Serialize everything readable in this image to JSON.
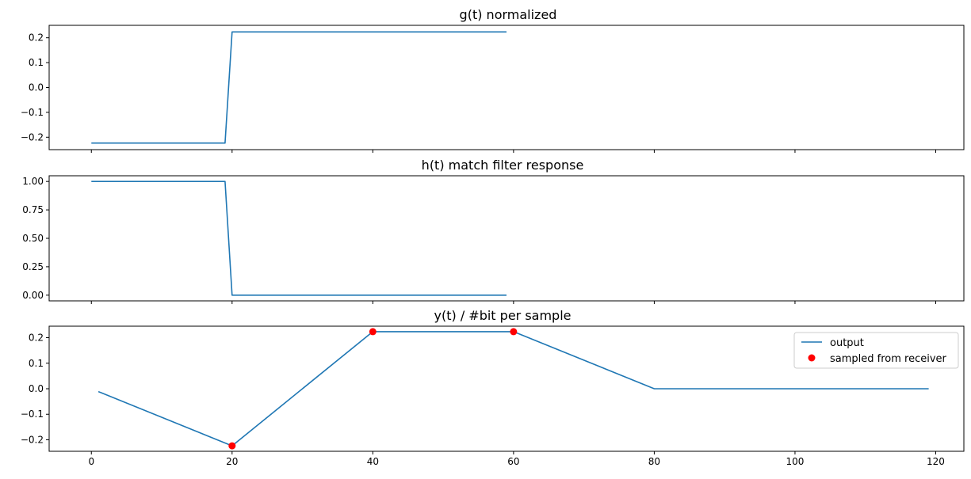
{
  "colors": {
    "line": "#1f77b4",
    "marker": "#ff0000"
  },
  "chart_data": [
    {
      "type": "line",
      "title": "g(t) normalized",
      "xlim": [
        -6,
        124
      ],
      "ylim": [
        -0.25,
        0.25
      ],
      "x_ticks": [
        0,
        20,
        40,
        60,
        80,
        100,
        120
      ],
      "x_ticklabels": [
        "",
        "",
        "",
        "",
        "",
        "",
        ""
      ],
      "y_ticks": [
        -0.2,
        -0.1,
        0.0,
        0.1,
        0.2
      ],
      "y_ticklabels": [
        "−0.2",
        "−0.1",
        "0.0",
        "0.1",
        "0.2"
      ],
      "series": [
        {
          "style": "line",
          "x": [
            0,
            19,
            20,
            59
          ],
          "y": [
            -0.2236,
            -0.2236,
            0.2236,
            0.2236
          ]
        }
      ]
    },
    {
      "type": "line",
      "title": "h(t) match filter response",
      "xlim": [
        -6,
        124
      ],
      "ylim": [
        -0.05,
        1.05
      ],
      "x_ticks": [
        0,
        20,
        40,
        60,
        80,
        100,
        120
      ],
      "x_ticklabels": [
        "",
        "",
        "",
        "",
        "",
        "",
        ""
      ],
      "y_ticks": [
        0.0,
        0.25,
        0.5,
        0.75,
        1.0
      ],
      "y_ticklabels": [
        "0.00",
        "0.25",
        "0.50",
        "0.75",
        "1.00"
      ],
      "series": [
        {
          "style": "line",
          "x": [
            0,
            19,
            20,
            59
          ],
          "y": [
            1.0,
            1.0,
            0.0,
            0.0
          ]
        }
      ]
    },
    {
      "type": "line",
      "title": "y(t) / #bit per sample",
      "xlim": [
        -6,
        124
      ],
      "ylim": [
        -0.245,
        0.245
      ],
      "x_ticks": [
        0,
        20,
        40,
        60,
        80,
        100,
        120
      ],
      "x_ticklabels": [
        "0",
        "20",
        "40",
        "60",
        "80",
        "100",
        "120"
      ],
      "y_ticks": [
        -0.2,
        -0.1,
        0.0,
        0.1,
        0.2
      ],
      "y_ticklabels": [
        "−0.2",
        "−0.1",
        "0.0",
        "0.1",
        "0.2"
      ],
      "legend": "top-right",
      "series": [
        {
          "name": "output",
          "style": "line",
          "x": [
            1,
            20,
            40,
            60,
            80,
            119
          ],
          "y": [
            -0.0112,
            -0.2236,
            0.2236,
            0.2236,
            0.0,
            0.0
          ]
        },
        {
          "name": "sampled from receiver",
          "style": "markers",
          "x": [
            20,
            40,
            60
          ],
          "y": [
            -0.2236,
            0.2236,
            0.2236
          ]
        }
      ]
    }
  ]
}
